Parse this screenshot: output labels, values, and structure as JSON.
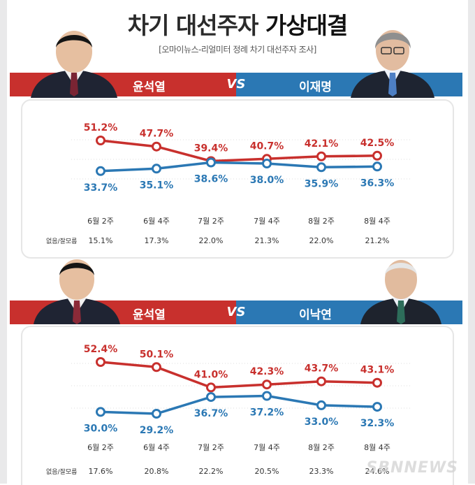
{
  "header": {
    "title_main": "차기 대선주자 ",
    "title_em": "가상대결",
    "subtitle": "[오마이뉴스-리얼미터 정례 차기 대선주자 조사]"
  },
  "colors": {
    "red": "#c8302d",
    "blue": "#2b78b4",
    "red_line": "#c8302d",
    "blue_line": "#2b78b4"
  },
  "matchups": [
    {
      "left_name": "윤석열",
      "vs": "VS",
      "right_name": "이재명"
    },
    {
      "left_name": "윤석열",
      "vs": "VS",
      "right_name": "이낙연"
    }
  ],
  "chart_data": [
    {
      "type": "line",
      "categories": [
        "6월 2주",
        "6월 4주",
        "7월 2주",
        "7월 4주",
        "8월 2주",
        "8월 4주"
      ],
      "series": [
        {
          "name": "윤석열",
          "values": [
            51.2,
            47.7,
            39.4,
            40.7,
            42.1,
            42.5
          ],
          "labels": [
            "51.2%",
            "47.7%",
            "39.4%",
            "40.7%",
            "42.1%",
            "42.5%"
          ],
          "color": "#c8302d"
        },
        {
          "name": "이재명",
          "values": [
            33.7,
            35.1,
            38.6,
            38.0,
            35.9,
            36.3
          ],
          "labels": [
            "33.7%",
            "35.1%",
            "38.6%",
            "38.0%",
            "35.9%",
            "36.3%"
          ],
          "color": "#2b78b4"
        }
      ],
      "undecided_label": "없음/잘모름",
      "undecided": [
        "15.1%",
        "17.3%",
        "22.0%",
        "21.3%",
        "22.0%",
        "21.2%"
      ],
      "grid": true,
      "xlabel": "",
      "ylabel": ""
    },
    {
      "type": "line",
      "categories": [
        "6월 2주",
        "6월 4주",
        "7월 2주",
        "7월 4주",
        "8월 2주",
        "8월 4주"
      ],
      "series": [
        {
          "name": "윤석열",
          "values": [
            52.4,
            50.1,
            41.0,
            42.3,
            43.7,
            43.1
          ],
          "labels": [
            "52.4%",
            "50.1%",
            "41.0%",
            "42.3%",
            "43.7%",
            "43.1%"
          ],
          "color": "#c8302d"
        },
        {
          "name": "이낙연",
          "values": [
            30.0,
            29.2,
            36.7,
            37.2,
            33.0,
            32.3
          ],
          "labels": [
            "30.0%",
            "29.2%",
            "36.7%",
            "37.2%",
            "33.0%",
            "32.3%"
          ],
          "color": "#2b78b4"
        }
      ],
      "undecided_label": "없음/잘모름",
      "undecided": [
        "17.6%",
        "20.8%",
        "22.2%",
        "20.5%",
        "23.3%",
        "24.6%"
      ],
      "grid": true,
      "xlabel": "",
      "ylabel": ""
    }
  ],
  "watermark": "SBNNEWS"
}
